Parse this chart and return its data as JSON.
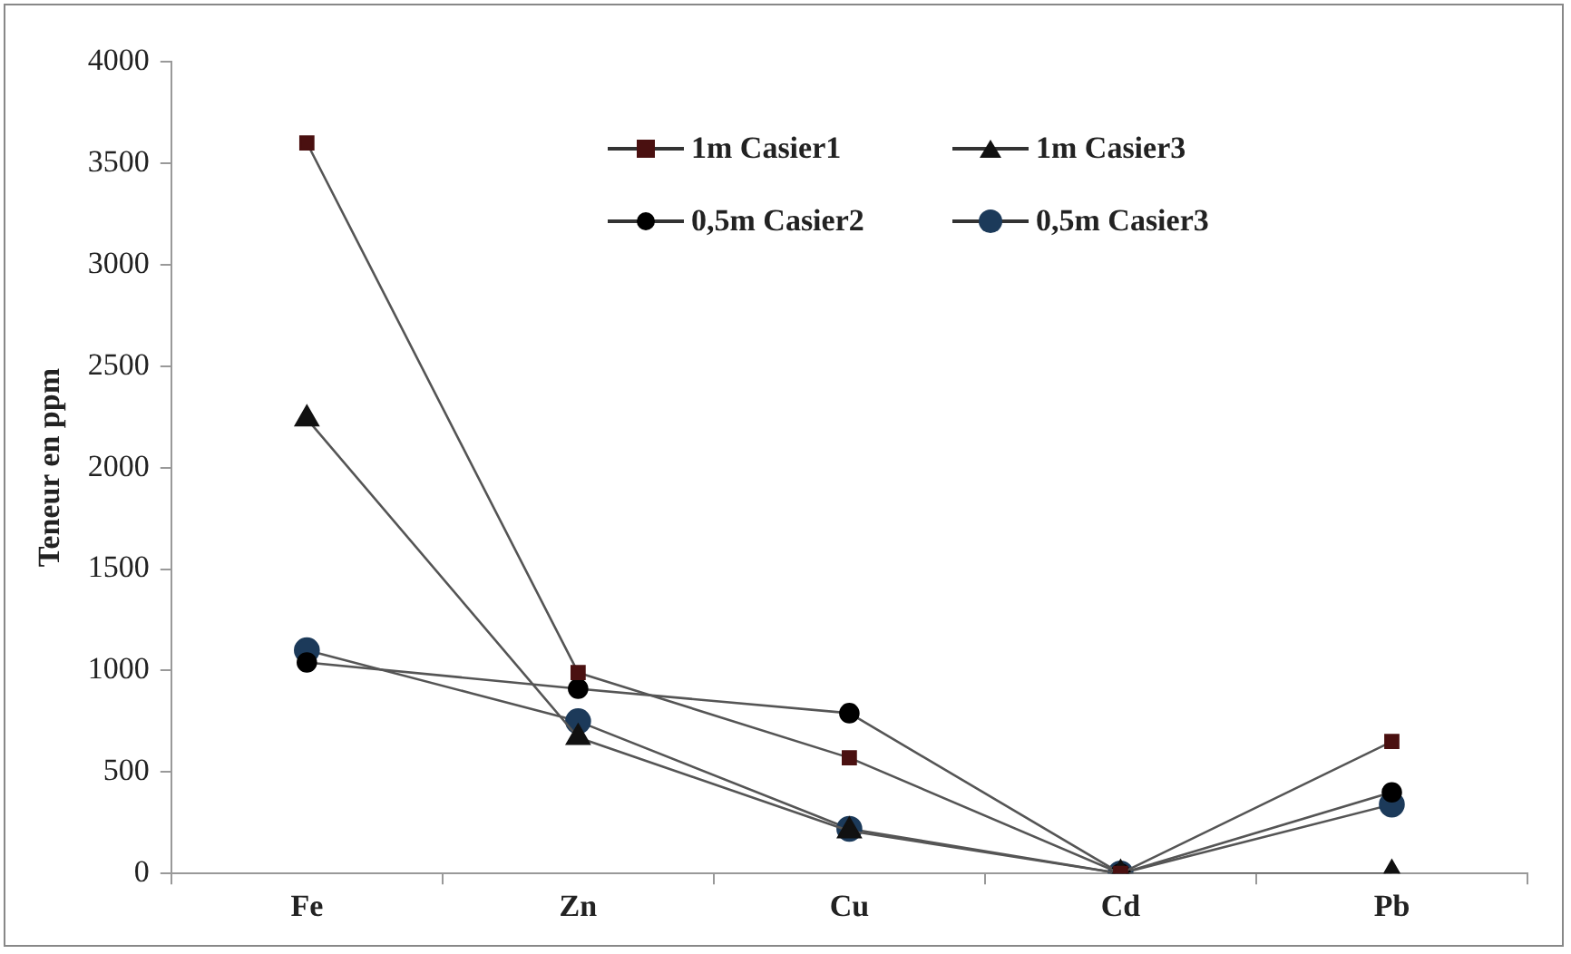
{
  "chart_data": {
    "type": "line",
    "ylabel": "Teneur en ppm",
    "categories": [
      "Fe",
      "Zn",
      "Cu",
      "Cd",
      "Pb"
    ],
    "series": [
      {
        "name": "1m Casier1",
        "color": "#4a1010",
        "marker": "square",
        "values": [
          3600,
          990,
          570,
          0,
          650
        ]
      },
      {
        "name": "1m Casier3",
        "color": "#111111",
        "marker": "triangle",
        "values": [
          2240,
          670,
          210,
          0,
          0
        ]
      },
      {
        "name": "0,5m Casier2",
        "color": "#000000",
        "marker": "circle",
        "values": [
          1040,
          910,
          790,
          0,
          400
        ]
      },
      {
        "name": "0,5m Casier3",
        "color": "#1c3a5a",
        "marker": "circle",
        "values": [
          1100,
          750,
          220,
          0,
          340
        ]
      }
    ],
    "ylim": [
      0,
      4000
    ],
    "yticks": [
      0,
      500,
      1000,
      1500,
      2000,
      2500,
      3000,
      3500,
      4000
    ],
    "grid": false,
    "legend": "top right",
    "line_style": "solid"
  }
}
